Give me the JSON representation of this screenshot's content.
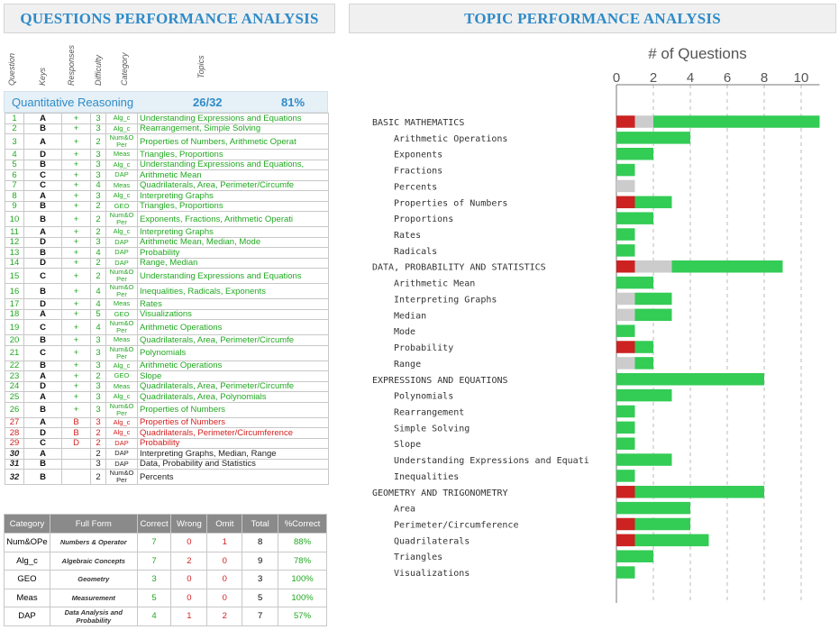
{
  "left_title": "QUESTIONS PERFORMANCE ANALYSIS",
  "right_title": "TOPIC PERFORMANCE ANALYSIS",
  "column_headers": [
    "Question",
    "Keys",
    "Responses",
    "Difficulty",
    "Category",
    "Topics"
  ],
  "section": {
    "name": "Quantitative Reasoning",
    "score": "26/32",
    "percent": "81%"
  },
  "questions": [
    {
      "q": "1",
      "key": "A",
      "resp": "+",
      "diff": "3",
      "cat": "Alg_c",
      "topic": "Understanding Expressions and Equations",
      "status": "correct"
    },
    {
      "q": "2",
      "key": "B",
      "resp": "+",
      "diff": "3",
      "cat": "Alg_c",
      "topic": "Rearrangement, Simple Solving",
      "status": "correct"
    },
    {
      "q": "3",
      "key": "A",
      "resp": "+",
      "diff": "2",
      "cat": "Num&O Per",
      "topic": "Properties of Numbers, Arithmetic Operat",
      "status": "correct"
    },
    {
      "q": "4",
      "key": "D",
      "resp": "+",
      "diff": "3",
      "cat": "Meas",
      "topic": "Triangles, Proportions",
      "status": "correct"
    },
    {
      "q": "5",
      "key": "B",
      "resp": "+",
      "diff": "3",
      "cat": "Alg_c",
      "topic": "Understanding Expressions and Equations,",
      "status": "correct"
    },
    {
      "q": "6",
      "key": "C",
      "resp": "+",
      "diff": "3",
      "cat": "DAP",
      "topic": "Arithmetic Mean",
      "status": "correct"
    },
    {
      "q": "7",
      "key": "C",
      "resp": "+",
      "diff": "4",
      "cat": "Meas",
      "topic": "Quadrilaterals, Area, Perimeter/Circumfe",
      "status": "correct"
    },
    {
      "q": "8",
      "key": "A",
      "resp": "+",
      "diff": "3",
      "cat": "Alg_c",
      "topic": "Interpreting Graphs",
      "status": "correct"
    },
    {
      "q": "9",
      "key": "B",
      "resp": "+",
      "diff": "2",
      "cat": "GEO",
      "topic": "Triangles, Proportions",
      "status": "correct"
    },
    {
      "q": "10",
      "key": "B",
      "resp": "+",
      "diff": "2",
      "cat": "Num&O Per",
      "topic": "Exponents, Fractions, Arithmetic Operati",
      "status": "correct"
    },
    {
      "q": "11",
      "key": "A",
      "resp": "+",
      "diff": "2",
      "cat": "Alg_c",
      "topic": "Interpreting Graphs",
      "status": "correct"
    },
    {
      "q": "12",
      "key": "D",
      "resp": "+",
      "diff": "3",
      "cat": "DAP",
      "topic": "Arithmetic Mean, Median, Mode",
      "status": "correct"
    },
    {
      "q": "13",
      "key": "B",
      "resp": "+",
      "diff": "4",
      "cat": "DAP",
      "topic": "Probability",
      "status": "correct"
    },
    {
      "q": "14",
      "key": "D",
      "resp": "+",
      "diff": "2",
      "cat": "DAP",
      "topic": "Range, Median",
      "status": "correct"
    },
    {
      "q": "15",
      "key": "C",
      "resp": "+",
      "diff": "2",
      "cat": "Num&O Per",
      "topic": "Understanding Expressions and Equations",
      "status": "correct"
    },
    {
      "q": "16",
      "key": "B",
      "resp": "+",
      "diff": "4",
      "cat": "Num&O Per",
      "topic": "Inequalities, Radicals, Exponents",
      "status": "correct"
    },
    {
      "q": "17",
      "key": "D",
      "resp": "+",
      "diff": "4",
      "cat": "Meas",
      "topic": "Rates",
      "status": "correct"
    },
    {
      "q": "18",
      "key": "A",
      "resp": "+",
      "diff": "5",
      "cat": "GEO",
      "topic": "Visualizations",
      "status": "correct"
    },
    {
      "q": "19",
      "key": "C",
      "resp": "+",
      "diff": "4",
      "cat": "Num&O Per",
      "topic": "Arithmetic Operations",
      "status": "correct"
    },
    {
      "q": "20",
      "key": "B",
      "resp": "+",
      "diff": "3",
      "cat": "Meas",
      "topic": "Quadrilaterals, Area, Perimeter/Circumfe",
      "status": "correct"
    },
    {
      "q": "21",
      "key": "C",
      "resp": "+",
      "diff": "3",
      "cat": "Num&O Per",
      "topic": "Polynomials",
      "status": "correct"
    },
    {
      "q": "22",
      "key": "B",
      "resp": "+",
      "diff": "3",
      "cat": "Alg_c",
      "topic": "Arithmetic Operations",
      "status": "correct"
    },
    {
      "q": "23",
      "key": "A",
      "resp": "+",
      "diff": "2",
      "cat": "GEO",
      "topic": "Slope",
      "status": "correct"
    },
    {
      "q": "24",
      "key": "D",
      "resp": "+",
      "diff": "3",
      "cat": "Meas",
      "topic": "Quadrilaterals, Area, Perimeter/Circumfe",
      "status": "correct"
    },
    {
      "q": "25",
      "key": "A",
      "resp": "+",
      "diff": "3",
      "cat": "Alg_c",
      "topic": "Quadrilaterals, Area, Polynomials",
      "status": "correct"
    },
    {
      "q": "26",
      "key": "B",
      "resp": "+",
      "diff": "3",
      "cat": "Num&O Per",
      "topic": "Properties of Numbers",
      "status": "correct"
    },
    {
      "q": "27",
      "key": "A",
      "resp": "B",
      "diff": "3",
      "cat": "Alg_c",
      "topic": "Properties of Numbers",
      "status": "wrong"
    },
    {
      "q": "28",
      "key": "D",
      "resp": "B",
      "diff": "2",
      "cat": "Alg_c",
      "topic": "Quadrilaterals, Perimeter/Circumference",
      "status": "wrong"
    },
    {
      "q": "29",
      "key": "C",
      "resp": "D",
      "diff": "2",
      "cat": "DAP",
      "topic": "Probability",
      "status": "wrong"
    },
    {
      "q": "30",
      "key": "A",
      "resp": "",
      "diff": "2",
      "cat": "DAP",
      "topic": "Interpreting Graphs, Median, Range",
      "status": "omit"
    },
    {
      "q": "31",
      "key": "B",
      "resp": "",
      "diff": "3",
      "cat": "DAP",
      "topic": "Data, Probability and Statistics",
      "status": "omit"
    },
    {
      "q": "32",
      "key": "B",
      "resp": "",
      "diff": "2",
      "cat": "Num&O Per",
      "topic": "Percents",
      "status": "omit"
    }
  ],
  "summary": {
    "headers": [
      "Category",
      "Full Form",
      "Correct",
      "Wrong",
      "Omit",
      "Total",
      "%Correct"
    ],
    "rows": [
      {
        "cat": "Num&OPe",
        "full": "Numbers & Operator",
        "correct": "7",
        "wrong": "0",
        "omit": "1",
        "total": "8",
        "pct": "88%"
      },
      {
        "cat": "Alg_c",
        "full": "Algebraic Concepts",
        "correct": "7",
        "wrong": "2",
        "omit": "0",
        "total": "9",
        "pct": "78%"
      },
      {
        "cat": "GEO",
        "full": "Geometry",
        "correct": "3",
        "wrong": "0",
        "omit": "0",
        "total": "3",
        "pct": "100%"
      },
      {
        "cat": "Meas",
        "full": "Measurement",
        "correct": "5",
        "wrong": "0",
        "omit": "0",
        "total": "5",
        "pct": "100%"
      },
      {
        "cat": "DAP",
        "full": "Data Analysis and Probability",
        "correct": "4",
        "wrong": "1",
        "omit": "2",
        "total": "7",
        "pct": "57%"
      }
    ]
  },
  "colors": {
    "correct": "#33cc55",
    "wrong": "#cc2222",
    "omit": "#cccccc",
    "title": "#2e8bc9"
  },
  "chart_data": {
    "type": "bar",
    "orientation": "horizontal",
    "stacked": true,
    "title": "# of Questions",
    "xlim": [
      0,
      11
    ],
    "xticks": [
      0,
      2,
      4,
      6,
      8,
      10
    ],
    "grid": true,
    "categories": [
      "BASIC MATHEMATICS",
      "Arithmetic Operations",
      "Exponents",
      "Fractions",
      "Percents",
      "Properties of Numbers",
      "Proportions",
      "Rates",
      "Radicals",
      "DATA, PROBABILITY AND STATISTICS",
      "Arithmetic Mean",
      "Interpreting Graphs",
      "Median",
      "Mode",
      "Probability",
      "Range",
      "EXPRESSIONS AND EQUATIONS",
      "Polynomials",
      "Rearrangement",
      "Simple Solving",
      "Slope",
      "Understanding Expressions and Equati",
      "Inequalities",
      "GEOMETRY AND TRIGONOMETRY",
      "Area",
      "Perimeter/Circumference",
      "Quadrilaterals",
      "Triangles",
      "Visualizations"
    ],
    "group_headers": [
      "BASIC MATHEMATICS",
      "DATA, PROBABILITY AND STATISTICS",
      "EXPRESSIONS AND EQUATIONS",
      "GEOMETRY AND TRIGONOMETRY"
    ],
    "series": [
      {
        "name": "Wrong",
        "color": "#cc2222",
        "values": [
          1,
          0,
          0,
          0,
          0,
          1,
          0,
          0,
          0,
          1,
          0,
          0,
          0,
          0,
          1,
          0,
          0,
          0,
          0,
          0,
          0,
          0,
          0,
          1,
          0,
          1,
          1,
          0,
          0
        ]
      },
      {
        "name": "Omit",
        "color": "#cccccc",
        "values": [
          1,
          0,
          0,
          0,
          1,
          0,
          0,
          0,
          0,
          2,
          0,
          1,
          1,
          0,
          0,
          1,
          0,
          0,
          0,
          0,
          0,
          0,
          0,
          0,
          0,
          0,
          0,
          0,
          0
        ]
      },
      {
        "name": "Correct",
        "color": "#33cc55",
        "values": [
          9,
          4,
          2,
          1,
          0,
          2,
          2,
          1,
          1,
          6,
          2,
          2,
          2,
          1,
          1,
          1,
          8,
          3,
          1,
          1,
          1,
          3,
          1,
          7,
          4,
          3,
          4,
          2,
          1
        ]
      }
    ]
  }
}
